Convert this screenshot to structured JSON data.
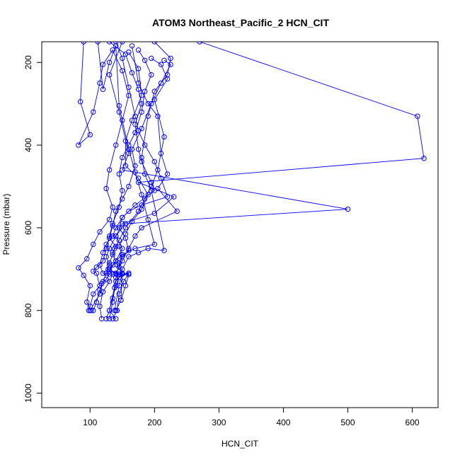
{
  "chart_data": {
    "type": "line",
    "title": "ATOM3 Northeast_Pacific_2 HCN_CIT",
    "xlabel": "HCN_CIT",
    "ylabel": "Pressure (mbar)",
    "xlim": [
      25,
      640
    ],
    "ylim": [
      1035,
      150
    ],
    "y_reversed": true,
    "xticks": [
      100,
      200,
      300,
      400,
      500,
      600
    ],
    "yticks": [
      200,
      400,
      600,
      800,
      1000
    ],
    "grid": false,
    "legend": "none",
    "series_color": "#0000ff",
    "marker": "open-circle",
    "series": [
      {
        "values": [
          [
            112,
            150
          ],
          [
            120,
            265
          ],
          [
            130,
            200
          ],
          [
            140,
            160
          ],
          [
            145,
            305
          ],
          [
            160,
            410
          ],
          [
            170,
            465
          ],
          [
            180,
            520
          ],
          [
            190,
            580
          ],
          [
            200,
            640
          ],
          [
            170,
            650
          ],
          [
            150,
            665
          ],
          [
            140,
            680
          ],
          [
            135,
            690
          ],
          [
            130,
            700
          ],
          [
            140,
            710
          ],
          [
            150,
            712
          ],
          [
            160,
            710
          ],
          [
            145,
            720
          ],
          [
            140,
            740
          ],
          [
            135,
            770
          ],
          [
            130,
            800
          ],
          [
            125,
            820
          ]
        ]
      },
      {
        "values": [
          [
            270,
            150
          ],
          [
            608,
            330
          ],
          [
            618,
            432
          ],
          [
            175,
            490
          ],
          [
            230,
            525
          ],
          [
            200,
            565
          ],
          [
            150,
            590
          ],
          [
            140,
            620
          ],
          [
            130,
            650
          ],
          [
            125,
            670
          ],
          [
            130,
            690
          ],
          [
            125,
            710
          ],
          [
            120,
            730
          ],
          [
            115,
            750
          ],
          [
            110,
            780
          ],
          [
            105,
            800
          ]
        ]
      },
      {
        "values": [
          [
            150,
            150
          ],
          [
            130,
            230
          ],
          [
            145,
            320
          ],
          [
            160,
            420
          ],
          [
            150,
            460
          ],
          [
            500,
            555
          ],
          [
            155,
            590
          ],
          [
            140,
            620
          ],
          [
            150,
            650
          ],
          [
            140,
            680
          ],
          [
            130,
            705
          ],
          [
            145,
            712
          ],
          [
            150,
            710
          ],
          [
            140,
            730
          ],
          [
            130,
            800
          ],
          [
            140,
            820
          ]
        ]
      },
      {
        "values": [
          [
            165,
            160
          ],
          [
            175,
            250
          ],
          [
            190,
            300
          ],
          [
            205,
            330
          ],
          [
            210,
            420
          ],
          [
            220,
            470
          ],
          [
            205,
            505
          ],
          [
            235,
            560
          ],
          [
            180,
            600
          ],
          [
            170,
            620
          ],
          [
            160,
            650
          ],
          [
            150,
            680
          ],
          [
            140,
            710
          ],
          [
            150,
            712
          ],
          [
            148,
            775
          ],
          [
            140,
            800
          ]
        ]
      },
      {
        "values": [
          [
            140,
            150
          ],
          [
            150,
            190
          ],
          [
            160,
            260
          ],
          [
            170,
            330
          ],
          [
            175,
            365
          ],
          [
            185,
            400
          ],
          [
            200,
            440
          ],
          [
            210,
            480
          ],
          [
            220,
            525
          ],
          [
            180,
            545
          ],
          [
            160,
            560
          ],
          [
            150,
            575
          ],
          [
            140,
            600
          ],
          [
            135,
            620
          ],
          [
            125,
            640
          ],
          [
            120,
            660
          ],
          [
            115,
            690
          ],
          [
            120,
            710
          ],
          [
            130,
            712
          ],
          [
            125,
            725
          ],
          [
            118,
            735
          ],
          [
            115,
            760
          ],
          [
            100,
            800
          ]
        ]
      },
      {
        "values": [
          [
            175,
            170
          ],
          [
            185,
            195
          ],
          [
            195,
            230
          ],
          [
            185,
            270
          ],
          [
            180,
            320
          ],
          [
            170,
            370
          ],
          [
            160,
            400
          ],
          [
            150,
            430
          ],
          [
            145,
            470
          ],
          [
            150,
            510
          ],
          [
            145,
            550
          ],
          [
            135,
            590
          ],
          [
            130,
            620
          ],
          [
            125,
            650
          ],
          [
            120,
            680
          ],
          [
            110,
            695
          ],
          [
            105,
            705
          ],
          [
            110,
            710
          ],
          [
            115,
            740
          ],
          [
            105,
            760
          ],
          [
            100,
            790
          ],
          [
            98,
            800
          ]
        ]
      },
      {
        "values": [
          [
            90,
            150
          ],
          [
            85,
            295
          ],
          [
            100,
            375
          ],
          [
            82,
            400
          ],
          [
            105,
            320
          ],
          [
            115,
            250
          ],
          [
            120,
            205
          ],
          [
            135,
            170
          ],
          [
            150,
            220
          ],
          [
            160,
            280
          ],
          [
            150,
            340
          ],
          [
            140,
            400
          ],
          [
            130,
            460
          ],
          [
            125,
            505
          ],
          [
            135,
            550
          ],
          [
            130,
            580
          ],
          [
            115,
            610
          ],
          [
            105,
            640
          ],
          [
            95,
            675
          ],
          [
            82,
            697
          ],
          [
            90,
            715
          ],
          [
            100,
            740
          ],
          [
            95,
            780
          ],
          [
            102,
            800
          ]
        ]
      },
      {
        "values": [
          [
            160,
            175
          ],
          [
            175,
            215
          ],
          [
            180,
            280
          ],
          [
            165,
            340
          ],
          [
            155,
            390
          ],
          [
            155,
            450
          ],
          [
            175,
            480
          ],
          [
            190,
            520
          ],
          [
            180,
            555
          ],
          [
            165,
            585
          ],
          [
            155,
            615
          ],
          [
            145,
            645
          ],
          [
            150,
            665
          ],
          [
            145,
            685
          ],
          [
            150,
            712
          ],
          [
            160,
            713
          ],
          [
            155,
            740
          ],
          [
            148,
            775
          ]
        ]
      },
      {
        "values": [
          [
            195,
            190
          ],
          [
            210,
            205
          ],
          [
            220,
            240
          ],
          [
            200,
            290
          ],
          [
            215,
            380
          ],
          [
            205,
            460
          ],
          [
            195,
            500
          ],
          [
            185,
            530
          ],
          [
            175,
            560
          ],
          [
            155,
            600
          ],
          [
            145,
            630
          ],
          [
            138,
            650
          ],
          [
            135,
            665
          ],
          [
            130,
            685
          ],
          [
            128,
            700
          ],
          [
            135,
            712
          ],
          [
            130,
            730
          ],
          [
            120,
            755
          ],
          [
            115,
            790
          ],
          [
            118,
            820
          ]
        ]
      },
      {
        "values": [
          [
            215,
            195
          ],
          [
            225,
            205
          ],
          [
            210,
            250
          ],
          [
            195,
            300
          ],
          [
            180,
            360
          ],
          [
            165,
            410
          ],
          [
            170,
            450
          ],
          [
            160,
            500
          ],
          [
            150,
            530
          ],
          [
            140,
            560
          ],
          [
            135,
            595
          ],
          [
            130,
            625
          ],
          [
            140,
            645
          ],
          [
            135,
            660
          ],
          [
            142,
            690
          ],
          [
            150,
            712
          ],
          [
            160,
            710
          ],
          [
            152,
            730
          ],
          [
            145,
            760
          ],
          [
            142,
            800
          ],
          [
            135,
            820
          ]
        ]
      },
      {
        "values": [
          [
            130,
            150
          ],
          [
            155,
            180
          ],
          [
            165,
            225
          ],
          [
            175,
            265
          ],
          [
            180,
            300
          ],
          [
            170,
            350
          ],
          [
            175,
            410
          ],
          [
            180,
            440
          ],
          [
            195,
            490
          ],
          [
            200,
            510
          ],
          [
            170,
            545
          ],
          [
            150,
            575
          ],
          [
            145,
            600
          ],
          [
            155,
            625
          ],
          [
            160,
            655
          ],
          [
            150,
            670
          ],
          [
            145,
            695
          ],
          [
            140,
            712
          ],
          [
            150,
            710
          ],
          [
            145,
            740
          ],
          [
            138,
            800
          ]
        ]
      },
      {
        "values": [
          [
            200,
            150
          ],
          [
            225,
            190
          ],
          [
            220,
            230
          ],
          [
            200,
            270
          ],
          [
            190,
            330
          ],
          [
            180,
            430
          ],
          [
            185,
            470
          ],
          [
            195,
            510
          ],
          [
            215,
            655
          ],
          [
            190,
            650
          ],
          [
            175,
            660
          ],
          [
            160,
            670
          ],
          [
            150,
            700
          ],
          [
            145,
            712
          ],
          [
            140,
            720
          ],
          [
            138,
            745
          ],
          [
            135,
            780
          ],
          [
            130,
            820
          ]
        ]
      }
    ]
  }
}
